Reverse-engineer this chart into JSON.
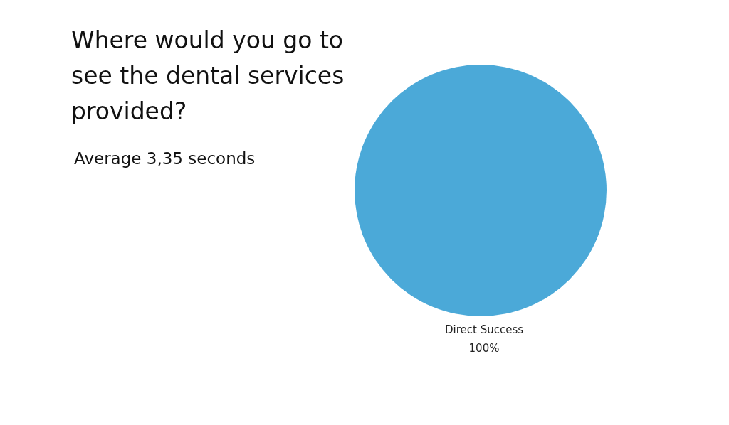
{
  "chart_data": {
    "type": "pie",
    "title": "Where would you go to see the dental services provided?",
    "subtitle": "Average  3,35 seconds",
    "categories": [
      "Direct Success"
    ],
    "values": [
      100
    ],
    "colors": [
      "#4ba9d8"
    ],
    "value_labels": [
      "100%"
    ]
  }
}
